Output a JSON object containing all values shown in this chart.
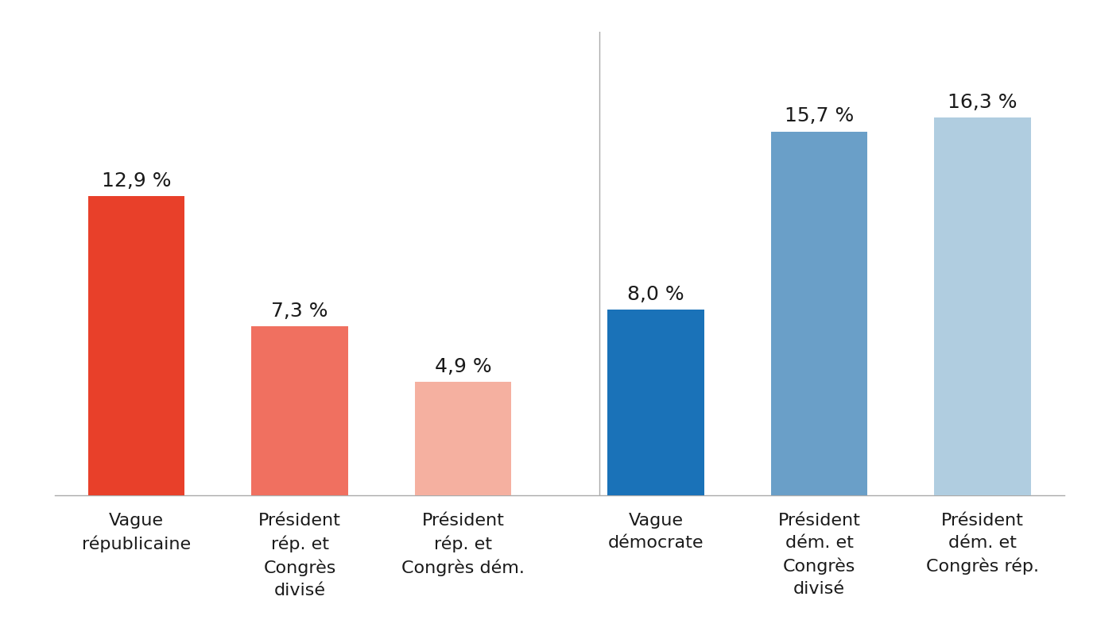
{
  "categories": [
    "Vague\nrépublicaine",
    "Président\nrép. et\nCongrès\ndivisé",
    "Président\nrép. et\nCongrès dém.",
    "Vague\ndémocrate",
    "Président\ndém. et\nCongrès\ndivisé",
    "Président\ndém. et\nCongrès rép."
  ],
  "values": [
    12.9,
    7.3,
    4.9,
    8.0,
    15.7,
    16.3
  ],
  "labels": [
    "12,9 %",
    "7,3 %",
    "4,9 %",
    "8,0 %",
    "15,7 %",
    "16,3 %"
  ],
  "colors": [
    "#E8402A",
    "#F07060",
    "#F5B0A0",
    "#1A72B8",
    "#6A9FC8",
    "#B0CDE0"
  ],
  "background_color": "#FFFFFF",
  "ylim": [
    0,
    20
  ],
  "bar_width": 0.65,
  "label_fontsize": 18,
  "tick_fontsize": 16,
  "x_positions": [
    0,
    1.1,
    2.2,
    3.5,
    4.6,
    5.7
  ],
  "divider_x": 3.12,
  "xlim": [
    -0.55,
    6.25
  ]
}
